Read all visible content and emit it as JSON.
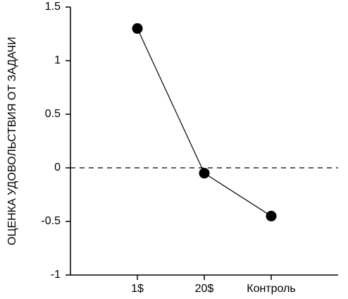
{
  "chart_data": {
    "type": "line",
    "y_label": "ОЦЕНКА УДОВОЛЬСТВИЯ ОТ ЗАДАЧИ",
    "categories": [
      "1$",
      "20$",
      "Контроль"
    ],
    "values": [
      1.3,
      -0.05,
      -0.45
    ],
    "color": "#000000",
    "ylim": [
      -1,
      1.5
    ],
    "yticks": [
      -1,
      -0.5,
      0,
      0.5,
      1,
      1.5
    ],
    "zero_line": true
  }
}
